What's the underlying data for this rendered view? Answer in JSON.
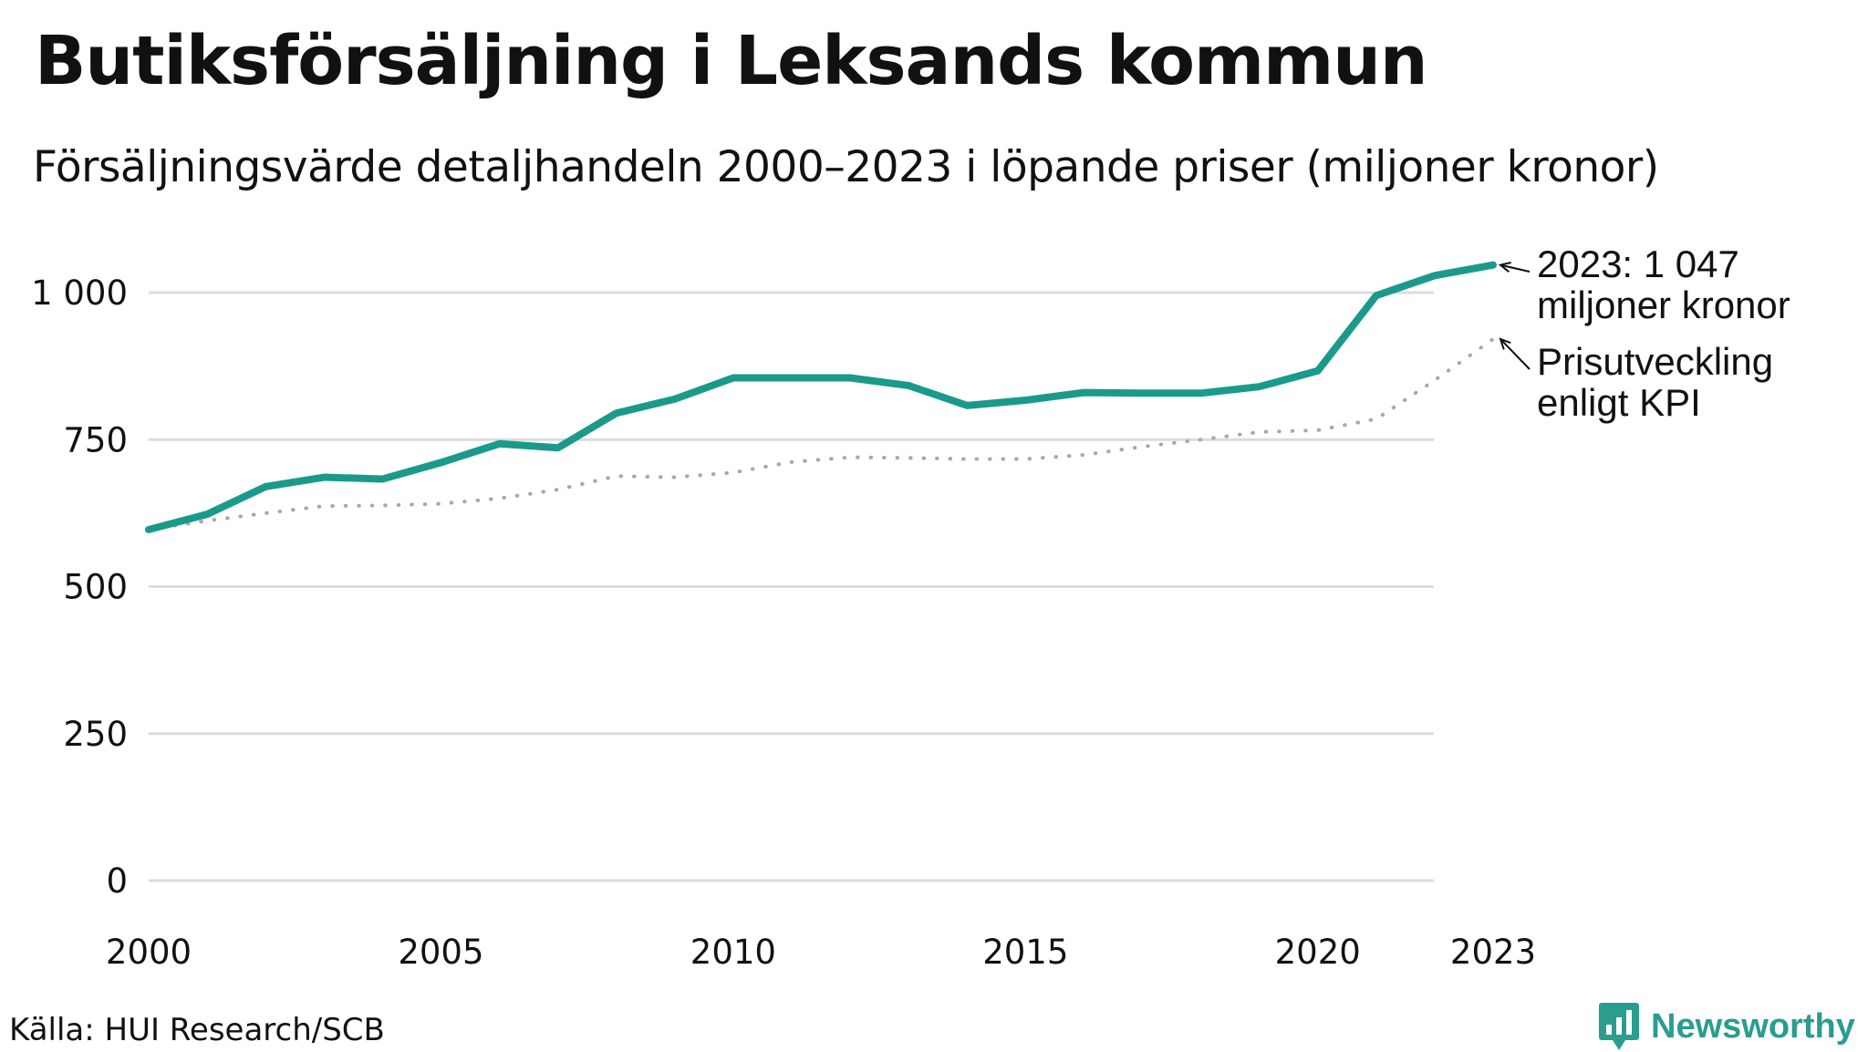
{
  "chart_data": {
    "type": "line",
    "title": "Butiksförsäljning i Leksands kommun",
    "subtitle": "Försäljningsvärde detaljhandeln 2000–2023 i löpande priser (miljoner kronor)",
    "xlabel": "",
    "ylabel": "",
    "x": [
      2000,
      2001,
      2002,
      2003,
      2004,
      2005,
      2006,
      2007,
      2008,
      2009,
      2010,
      2011,
      2012,
      2013,
      2014,
      2015,
      2016,
      2017,
      2018,
      2019,
      2020,
      2021,
      2022,
      2023
    ],
    "series": [
      {
        "name": "Försäljningsvärde",
        "color": "#1a9a8a",
        "style": "solid",
        "values": [
          597,
          623,
          670,
          686,
          683,
          711,
          743,
          736,
          795,
          819,
          855,
          855,
          855,
          842,
          808,
          817,
          830,
          829,
          829,
          840,
          867,
          995,
          1029,
          1047
        ]
      },
      {
        "name": "Prisutveckling enligt KPI",
        "color": "#a8a8a8",
        "style": "dotted",
        "values": [
          597,
          612,
          625,
          637,
          638,
          641,
          650,
          665,
          688,
          686,
          694,
          712,
          720,
          719,
          717,
          717,
          724,
          738,
          750,
          763,
          766,
          785,
          851,
          921
        ]
      }
    ],
    "ylim": [
      0,
      1050
    ],
    "yticks": [
      0,
      250,
      500,
      750,
      1000
    ],
    "ytick_labels": [
      "0",
      "250",
      "500",
      "750",
      "1 000"
    ],
    "xticks": [
      2000,
      2005,
      2010,
      2015,
      2020,
      2023
    ],
    "xtick_labels": [
      "2000",
      "2005",
      "2010",
      "2015",
      "2020",
      "2023"
    ],
    "grid": true,
    "annotations": [
      {
        "target": "Försäljningsvärde",
        "lines": [
          "2023: 1 047",
          "miljoner kronor"
        ]
      },
      {
        "target": "Prisutveckling enligt KPI",
        "lines": [
          "Prisutveckling",
          "enligt KPI"
        ]
      }
    ],
    "source": "Källa: HUI Research/SCB",
    "brand": "Newsworthy",
    "brand_color": "#2a9d8f"
  }
}
